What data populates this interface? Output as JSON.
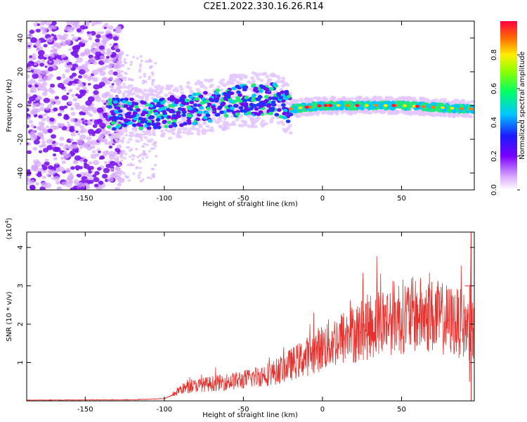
{
  "title": "C2E1.2022.330.16.26.R14",
  "chart_data": [
    {
      "type": "heatmap",
      "xlabel": "Height of straight line (km)",
      "ylabel": "Frequency (Hz)",
      "xlim": [
        -187,
        96
      ],
      "ylim": [
        -50,
        50
      ],
      "xticks": [
        -150,
        -100,
        -50,
        0,
        50
      ],
      "yticks": [
        -40,
        -20,
        0,
        20,
        40
      ],
      "colorbar": {
        "label": "Normalized spectral amplitude",
        "range": [
          0,
          1
        ],
        "ticks": [
          "0.0",
          "0.2",
          "0.4",
          "0.6",
          "0.8"
        ]
      },
      "trace": {
        "description_points_x": [
          -130,
          -110,
          -90,
          -70,
          -50,
          -30,
          -20,
          0,
          50,
          90
        ],
        "frequency_hz": [
          -5,
          -5,
          -3,
          0,
          3,
          4,
          -2,
          0,
          0,
          -2
        ]
      }
    },
    {
      "type": "line",
      "xlabel": "Height of straight line (km)",
      "ylabel": "SNR (10 * v/v)",
      "yscale_label": "(x10",
      "yscale_exp": "4",
      "yscale_close": ")",
      "xlim": [
        -187,
        96
      ],
      "ylim": [
        0,
        4.4
      ],
      "xticks": [
        -150,
        -100,
        -50,
        0,
        50
      ],
      "yticks": [
        1,
        2,
        3,
        4
      ],
      "line_color": "#e8302c",
      "envelope": {
        "x": [
          -187,
          -120,
          -100,
          -95,
          -90,
          -80,
          -70,
          -50,
          -30,
          -20,
          -10,
          0,
          10,
          20,
          30,
          40,
          45,
          50,
          60,
          70,
          80,
          88,
          92,
          94,
          96
        ],
        "y": [
          0.02,
          0.03,
          0.06,
          0.15,
          0.3,
          0.4,
          0.45,
          0.55,
          0.75,
          0.95,
          1.15,
          1.4,
          1.6,
          1.75,
          1.95,
          2.1,
          2.2,
          2.2,
          2.25,
          2.2,
          2.1,
          2.0,
          1.9,
          1.8,
          1.8
        ]
      }
    }
  ]
}
